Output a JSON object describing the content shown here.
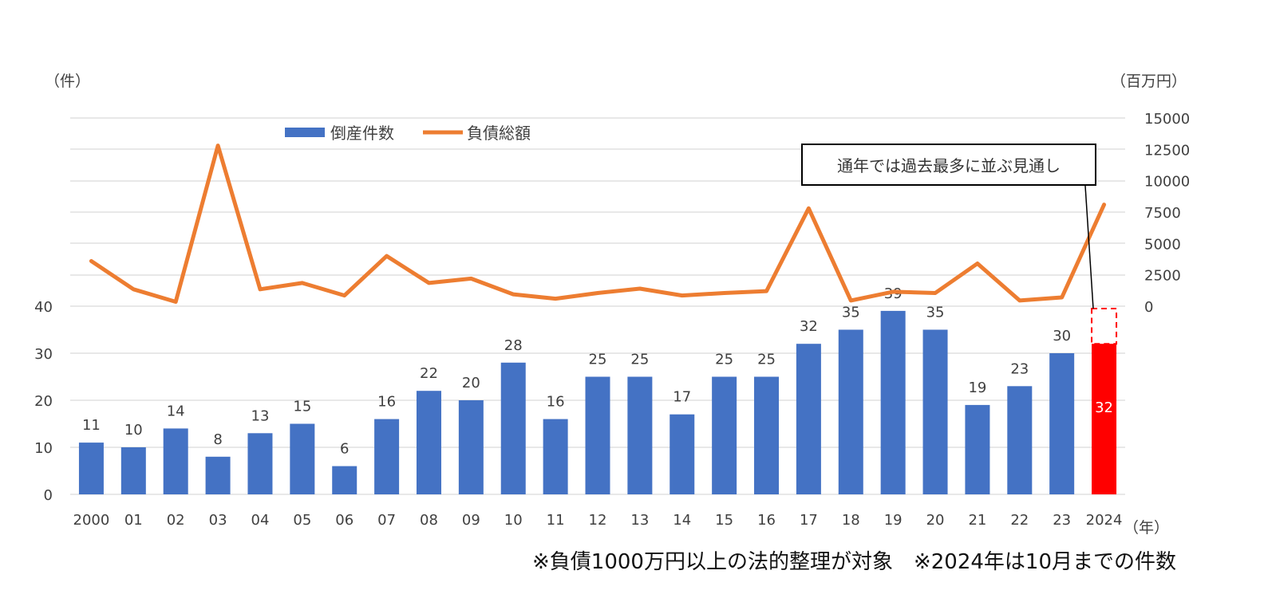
{
  "chart_data": {
    "type": "bar+line",
    "categories": [
      "2000",
      "01",
      "02",
      "03",
      "04",
      "05",
      "06",
      "07",
      "08",
      "09",
      "10",
      "11",
      "12",
      "13",
      "14",
      "15",
      "16",
      "17",
      "18",
      "19",
      "20",
      "21",
      "22",
      "23",
      "2024"
    ],
    "series": [
      {
        "name": "倒産件数",
        "type": "bar",
        "axis": "left",
        "color": "#4472C4",
        "values": [
          11,
          10,
          14,
          8,
          13,
          15,
          6,
          16,
          22,
          20,
          28,
          16,
          25,
          25,
          17,
          25,
          25,
          32,
          35,
          39,
          35,
          19,
          23,
          30,
          32
        ],
        "highlight": {
          "index": 24,
          "color": "#FF0000"
        }
      },
      {
        "name": "負債総額",
        "type": "line",
        "axis": "right",
        "color": "#ED7D31",
        "values": [
          3600,
          1350,
          350,
          12800,
          1350,
          1850,
          850,
          4000,
          1850,
          2200,
          950,
          600,
          1050,
          1400,
          850,
          1050,
          1200,
          7800,
          450,
          1150,
          1050,
          3400,
          450,
          700,
          8100
        ]
      }
    ],
    "y_left": {
      "unit_label": "（件）",
      "ticks": [
        0,
        10,
        20,
        30,
        40
      ],
      "max": 80
    },
    "y_right": {
      "unit_label": "（百万円）",
      "ticks": [
        0,
        2500,
        5000,
        7500,
        10000,
        12500,
        15000
      ],
      "min": -15000,
      "max": 15000
    },
    "x_unit_label": "（年）",
    "legend": {
      "position": "top-left",
      "items": [
        "倒産件数",
        "負債総額"
      ]
    },
    "annotation": "通年では過去最多に並ぶ見通し",
    "grid": true
  },
  "footnote": "※負債1000万円以上の法的整理が対象　※2024年は10月までの件数"
}
